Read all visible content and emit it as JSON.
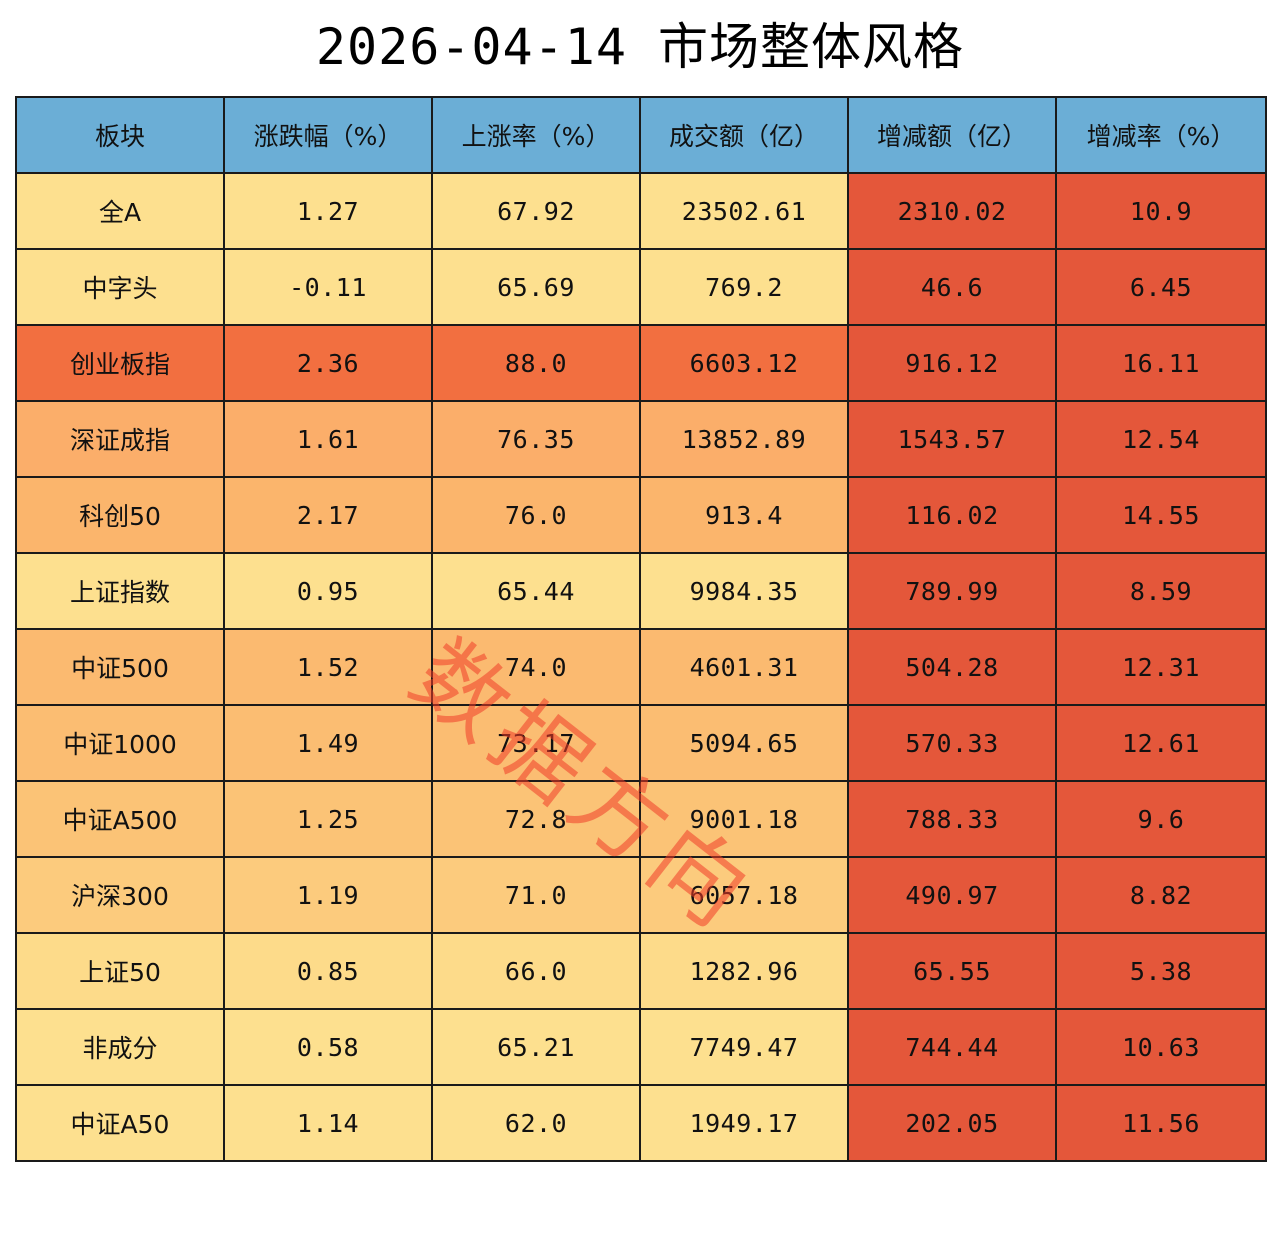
{
  "title": "2026-04-14 市场整体风格",
  "watermark": "数据方向",
  "chart_data": {
    "type": "table",
    "title": "2026-04-14 市场整体风格",
    "columns": [
      "板块",
      "涨跌幅（%）",
      "上涨率（%）",
      "成交额（亿）",
      "增减额（亿）",
      "增减率（%）"
    ],
    "rows": [
      [
        "全A",
        "1.27",
        "67.92",
        "23502.61",
        "2310.02",
        "10.9"
      ],
      [
        "中字头",
        "-0.11",
        "65.69",
        "769.2",
        "46.6",
        "6.45"
      ],
      [
        "创业板指",
        "2.36",
        "88.0",
        "6603.12",
        "916.12",
        "16.11"
      ],
      [
        "深证成指",
        "1.61",
        "76.35",
        "13852.89",
        "1543.57",
        "12.54"
      ],
      [
        "科创50",
        "2.17",
        "76.0",
        "913.4",
        "116.02",
        "14.55"
      ],
      [
        "上证指数",
        "0.95",
        "65.44",
        "9984.35",
        "789.99",
        "8.59"
      ],
      [
        "中证500",
        "1.52",
        "74.0",
        "4601.31",
        "504.28",
        "12.31"
      ],
      [
        "中证1000",
        "1.49",
        "73.17",
        "5094.65",
        "570.33",
        "12.61"
      ],
      [
        "中证A500",
        "1.25",
        "72.8",
        "9001.18",
        "788.33",
        "9.6"
      ],
      [
        "沪深300",
        "1.19",
        "71.0",
        "6057.18",
        "490.97",
        "8.82"
      ],
      [
        "上证50",
        "0.85",
        "66.0",
        "1282.96",
        "65.55",
        "5.38"
      ],
      [
        "非成分",
        "0.58",
        "65.21",
        "7749.47",
        "744.44",
        "10.63"
      ],
      [
        "中证A50",
        "1.14",
        "62.0",
        "1949.17",
        "202.05",
        "11.56"
      ]
    ],
    "row_colors": [
      "#fde08f",
      "#fde08f",
      "#f26f40",
      "#fbae6a",
      "#fbb56c",
      "#fde08f",
      "#fbba70",
      "#fbbd72",
      "#fbc376",
      "#fccb7d",
      "#fddb8a",
      "#fde08f",
      "#fde08f"
    ],
    "change_column_color": "#e4573a",
    "header_color": "#6baed6"
  }
}
